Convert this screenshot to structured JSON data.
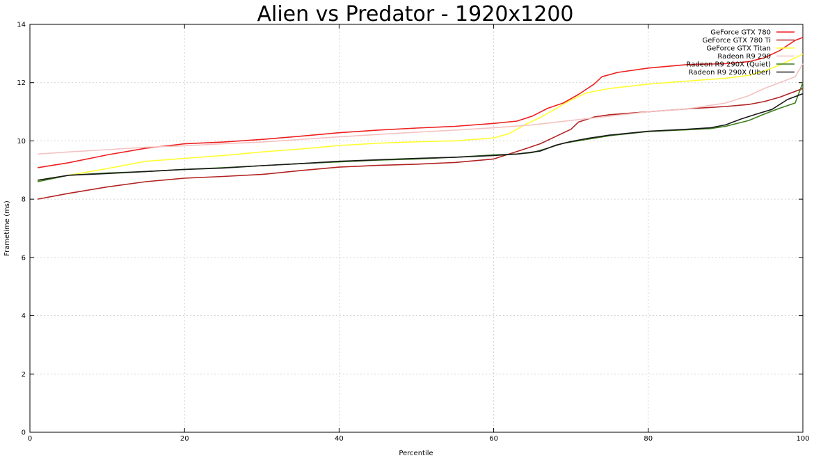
{
  "chart_data": {
    "type": "line",
    "title": "Alien vs Predator - 1920x1200",
    "xlabel": "Percentile",
    "ylabel": "Frametime (ms)",
    "xlim": [
      0,
      100
    ],
    "ylim": [
      0,
      14
    ],
    "xticks": [
      0,
      20,
      40,
      60,
      80,
      100
    ],
    "yticks": [
      0,
      2,
      4,
      6,
      8,
      10,
      12,
      14
    ],
    "grid": true,
    "legend_position": "top-right",
    "series": [
      {
        "name": "GeForce GTX 780",
        "color": "#ee1f1f",
        "points": [
          [
            1,
            9.08
          ],
          [
            5,
            9.25
          ],
          [
            10,
            9.52
          ],
          [
            15,
            9.75
          ],
          [
            20,
            9.9
          ],
          [
            25,
            9.96
          ],
          [
            30,
            10.05
          ],
          [
            35,
            10.16
          ],
          [
            40,
            10.28
          ],
          [
            45,
            10.37
          ],
          [
            50,
            10.44
          ],
          [
            55,
            10.5
          ],
          [
            60,
            10.6
          ],
          [
            63,
            10.68
          ],
          [
            65,
            10.85
          ],
          [
            67,
            11.12
          ],
          [
            69,
            11.3
          ],
          [
            71,
            11.6
          ],
          [
            73,
            11.95
          ],
          [
            74,
            12.2
          ],
          [
            76,
            12.35
          ],
          [
            80,
            12.5
          ],
          [
            85,
            12.62
          ],
          [
            90,
            12.65
          ],
          [
            93,
            12.72
          ],
          [
            95,
            12.85
          ],
          [
            97,
            13.1
          ],
          [
            99,
            13.45
          ],
          [
            100,
            13.55
          ]
        ]
      },
      {
        "name": "GeForce GTX 780 Ti",
        "color": "#b22222",
        "points": [
          [
            1,
            8.0
          ],
          [
            5,
            8.2
          ],
          [
            10,
            8.42
          ],
          [
            15,
            8.6
          ],
          [
            20,
            8.72
          ],
          [
            25,
            8.78
          ],
          [
            30,
            8.85
          ],
          [
            35,
            8.98
          ],
          [
            40,
            9.1
          ],
          [
            45,
            9.16
          ],
          [
            50,
            9.2
          ],
          [
            55,
            9.26
          ],
          [
            60,
            9.38
          ],
          [
            62,
            9.55
          ],
          [
            64,
            9.72
          ],
          [
            66,
            9.9
          ],
          [
            68,
            10.15
          ],
          [
            70,
            10.4
          ],
          [
            71,
            10.65
          ],
          [
            73,
            10.82
          ],
          [
            75,
            10.9
          ],
          [
            80,
            11.0
          ],
          [
            85,
            11.1
          ],
          [
            90,
            11.18
          ],
          [
            93,
            11.25
          ],
          [
            95,
            11.35
          ],
          [
            97,
            11.5
          ],
          [
            100,
            11.8
          ]
        ]
      },
      {
        "name": "GeForce GTX Titan",
        "color": "#ffff33",
        "points": [
          [
            1,
            8.65
          ],
          [
            5,
            8.82
          ],
          [
            10,
            9.05
          ],
          [
            15,
            9.3
          ],
          [
            20,
            9.4
          ],
          [
            25,
            9.5
          ],
          [
            30,
            9.62
          ],
          [
            35,
            9.72
          ],
          [
            40,
            9.84
          ],
          [
            45,
            9.92
          ],
          [
            50,
            9.97
          ],
          [
            55,
            10.0
          ],
          [
            60,
            10.1
          ],
          [
            62,
            10.25
          ],
          [
            64,
            10.55
          ],
          [
            66,
            10.8
          ],
          [
            68,
            11.1
          ],
          [
            70,
            11.4
          ],
          [
            72,
            11.65
          ],
          [
            75,
            11.8
          ],
          [
            80,
            11.95
          ],
          [
            85,
            12.05
          ],
          [
            90,
            12.15
          ],
          [
            93,
            12.25
          ],
          [
            95,
            12.4
          ],
          [
            97,
            12.6
          ],
          [
            100,
            12.98
          ]
        ]
      },
      {
        "name": "Radeon R9 290",
        "color": "#f4c2c2",
        "points": [
          [
            1,
            9.55
          ],
          [
            5,
            9.62
          ],
          [
            10,
            9.7
          ],
          [
            15,
            9.78
          ],
          [
            20,
            9.83
          ],
          [
            25,
            9.9
          ],
          [
            30,
            9.96
          ],
          [
            35,
            10.05
          ],
          [
            40,
            10.14
          ],
          [
            45,
            10.22
          ],
          [
            50,
            10.3
          ],
          [
            55,
            10.37
          ],
          [
            60,
            10.45
          ],
          [
            65,
            10.55
          ],
          [
            70,
            10.7
          ],
          [
            75,
            10.85
          ],
          [
            80,
            11.0
          ],
          [
            85,
            11.1
          ],
          [
            90,
            11.3
          ],
          [
            93,
            11.55
          ],
          [
            95,
            11.8
          ],
          [
            97,
            12.0
          ],
          [
            99,
            12.2
          ],
          [
            100,
            12.65
          ]
        ]
      },
      {
        "name": "Radeon R9 290X (Quiet)",
        "color": "#3a7d1a",
        "points": [
          [
            1,
            8.6
          ],
          [
            5,
            8.82
          ],
          [
            10,
            8.9
          ],
          [
            15,
            8.95
          ],
          [
            20,
            9.02
          ],
          [
            25,
            9.08
          ],
          [
            30,
            9.15
          ],
          [
            35,
            9.22
          ],
          [
            40,
            9.28
          ],
          [
            45,
            9.34
          ],
          [
            50,
            9.38
          ],
          [
            55,
            9.44
          ],
          [
            60,
            9.52
          ],
          [
            63,
            9.55
          ],
          [
            65,
            9.6
          ],
          [
            67,
            9.75
          ],
          [
            69,
            9.92
          ],
          [
            72,
            10.05
          ],
          [
            75,
            10.18
          ],
          [
            80,
            10.32
          ],
          [
            85,
            10.38
          ],
          [
            88,
            10.42
          ],
          [
            90,
            10.5
          ],
          [
            93,
            10.7
          ],
          [
            95,
            10.92
          ],
          [
            97,
            11.12
          ],
          [
            99,
            11.3
          ],
          [
            100,
            12.0
          ]
        ]
      },
      {
        "name": "Radeon R9 290X (Uber)",
        "color": "#1a1a1a",
        "points": [
          [
            1,
            8.65
          ],
          [
            5,
            8.82
          ],
          [
            10,
            8.88
          ],
          [
            15,
            8.95
          ],
          [
            20,
            9.02
          ],
          [
            25,
            9.07
          ],
          [
            30,
            9.15
          ],
          [
            35,
            9.22
          ],
          [
            40,
            9.3
          ],
          [
            45,
            9.35
          ],
          [
            50,
            9.4
          ],
          [
            55,
            9.44
          ],
          [
            60,
            9.5
          ],
          [
            63,
            9.55
          ],
          [
            66,
            9.65
          ],
          [
            68,
            9.85
          ],
          [
            70,
            9.98
          ],
          [
            72,
            10.08
          ],
          [
            75,
            10.2
          ],
          [
            80,
            10.33
          ],
          [
            85,
            10.4
          ],
          [
            88,
            10.45
          ],
          [
            90,
            10.55
          ],
          [
            92,
            10.75
          ],
          [
            94,
            10.92
          ],
          [
            96,
            11.08
          ],
          [
            98,
            11.42
          ],
          [
            100,
            11.62
          ]
        ]
      }
    ]
  }
}
